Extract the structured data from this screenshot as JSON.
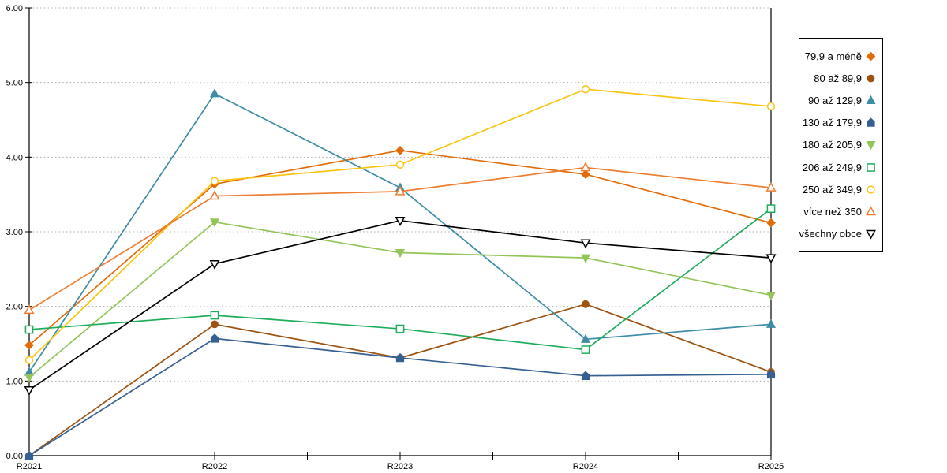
{
  "chart_data": {
    "type": "line",
    "categories": [
      "R2021",
      "R2022",
      "R2023",
      "R2024",
      "R2025"
    ],
    "series": [
      {
        "name": "79,9 a méně",
        "color": "#E36C0A",
        "marker": "diamond",
        "fill": "solid",
        "values": [
          1.48,
          3.64,
          4.09,
          3.77,
          3.12
        ]
      },
      {
        "name": "80 až 89,9",
        "color": "#9D5312",
        "marker": "circle",
        "fill": "solid",
        "values": [
          0.0,
          1.76,
          1.31,
          2.03,
          1.12
        ]
      },
      {
        "name": "90 až 129,9",
        "color": "#3E8CA6",
        "marker": "triangle-up",
        "fill": "solid",
        "values": [
          1.12,
          4.85,
          3.59,
          1.56,
          1.76
        ]
      },
      {
        "name": "130 až 179,9",
        "color": "#376092",
        "marker": "pentagon",
        "fill": "solid",
        "values": [
          0.0,
          1.57,
          1.31,
          1.07,
          1.09
        ]
      },
      {
        "name": "180 až 205,9",
        "color": "#93C558",
        "marker": "triangle-down",
        "fill": "solid",
        "values": [
          1.05,
          3.13,
          2.72,
          2.65,
          2.15
        ]
      },
      {
        "name": "206 až 249,9",
        "color": "#1FAD5C",
        "marker": "square",
        "fill": "hollow",
        "values": [
          1.69,
          1.88,
          1.7,
          1.42,
          3.31
        ]
      },
      {
        "name": "250 až 349,9",
        "color": "#FAC512",
        "marker": "circle",
        "fill": "hollow",
        "values": [
          1.28,
          3.68,
          3.9,
          4.91,
          4.68
        ]
      },
      {
        "name": "více než 350",
        "color": "#ED7D31",
        "marker": "triangle-up",
        "fill": "hollow",
        "values": [
          1.95,
          3.48,
          3.54,
          3.86,
          3.59
        ]
      },
      {
        "name": "všechny obce",
        "color": "#000000",
        "marker": "triangle-down",
        "fill": "hollow",
        "values": [
          0.88,
          2.57,
          3.15,
          2.85,
          2.65
        ]
      }
    ],
    "title": "",
    "xlabel": "",
    "ylabel": "",
    "ylim": [
      0,
      6
    ],
    "y_ticks": [
      "0.00",
      "1.00",
      "2.00",
      "3.00",
      "4.00",
      "5.00",
      "6.00"
    ],
    "grid": "horizontal-dotted",
    "gridline_color": "#ababab",
    "legend_position": "right"
  }
}
